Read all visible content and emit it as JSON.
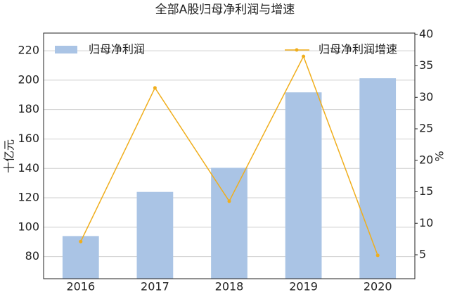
{
  "chart_data": {
    "type": "combo",
    "title": "全部A股归母净利润与增速",
    "y_label": "十亿元",
    "y2_label": "%",
    "categories": [
      "2016",
      "2017",
      "2018",
      "2019",
      "2020"
    ],
    "series": [
      {
        "name": "归母净利润",
        "type": "bar",
        "color": "#aac4e5",
        "values": [
          94,
          124,
          140.4,
          191.7,
          201.3
        ]
      },
      {
        "name": "归母净利润增速",
        "type": "line",
        "axis": "y2",
        "color": "#f0ae1c",
        "values": [
          7.1,
          31.5,
          13.5,
          36.5,
          4.9
        ]
      }
    ],
    "ylim": [
      65,
      232
    ],
    "yticks": [
      80,
      100,
      120,
      140,
      160,
      180,
      200,
      220
    ],
    "y2lim": [
      1.2,
      40.2
    ],
    "y2ticks": [
      5,
      10,
      15,
      20,
      25,
      30,
      35,
      40
    ],
    "grid": true
  }
}
